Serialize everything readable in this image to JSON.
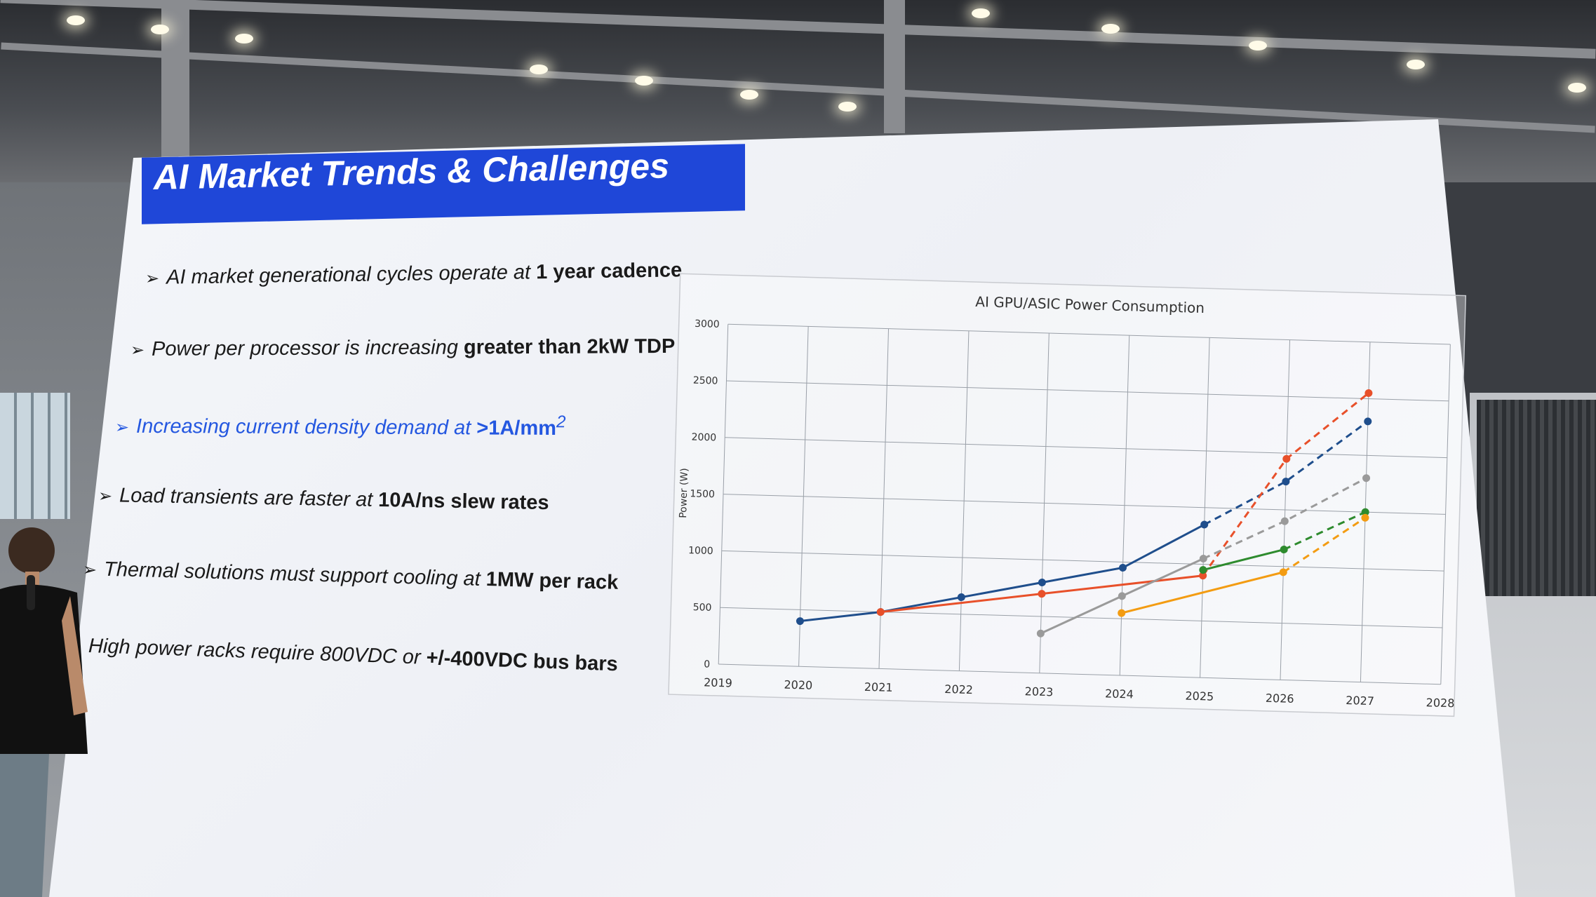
{
  "slide": {
    "title": "AI Market Trends & Challenges",
    "bullets": [
      {
        "text": "AI market generational cycles operate at ",
        "bold": "1 year cadence",
        "sup": ""
      },
      {
        "text": "Power per processor is increasing ",
        "bold": "greater than 2kW TDP",
        "sup": ""
      },
      {
        "text": "Increasing current density demand at ",
        "bold": ">1A/mm",
        "sup": "2"
      },
      {
        "text": "Load transients are faster at ",
        "bold": "10A/ns slew rates",
        "sup": ""
      },
      {
        "text": "Thermal solutions must support cooling at ",
        "bold": "1MW per rack",
        "sup": ""
      },
      {
        "text": "High power racks require 800VDC or ",
        "bold": "+/-400VDC bus bars",
        "sup": ""
      }
    ],
    "arrow_glyph": "➢",
    "colors": {
      "title_bar": "#1f47d8",
      "highlight_text": "#2457e0"
    }
  },
  "chart_data": {
    "type": "line",
    "title": "AI GPU/ASIC Power Consumption",
    "xlabel": "",
    "ylabel": "Power (W)",
    "x_ticks": [
      "2019",
      "2020",
      "2021",
      "2022",
      "2023",
      "2024",
      "2025",
      "2026",
      "2027",
      "2028"
    ],
    "y_ticks": [
      "0",
      "500",
      "1000",
      "1500",
      "2000",
      "2500",
      "3000"
    ],
    "xlim": [
      2019,
      2028
    ],
    "ylim": [
      0,
      3000
    ],
    "grid": true,
    "series": [
      {
        "color": "#1f4e8c",
        "solid": [
          [
            2020,
            400
          ],
          [
            2021,
            500
          ],
          [
            2022,
            650
          ],
          [
            2023,
            800
          ],
          [
            2024,
            950
          ],
          [
            2025,
            1350
          ]
        ],
        "dashed": [
          [
            2025,
            1350
          ],
          [
            2026,
            1750
          ],
          [
            2027,
            2300
          ]
        ]
      },
      {
        "color": "#e8502a",
        "solid": [
          [
            2021,
            500
          ],
          [
            2023,
            700
          ],
          [
            2025,
            900
          ]
        ],
        "dashed": [
          [
            2025,
            900
          ],
          [
            2026,
            1950
          ],
          [
            2027,
            2550
          ]
        ]
      },
      {
        "color": "#9a9a9a",
        "solid": [
          [
            2023,
            350
          ],
          [
            2024,
            700
          ],
          [
            2025,
            1050
          ]
        ],
        "dashed": [
          [
            2025,
            1050
          ],
          [
            2026,
            1400
          ],
          [
            2027,
            1800
          ]
        ]
      },
      {
        "color": "#2e8b2e",
        "solid": [
          [
            2025,
            950
          ],
          [
            2026,
            1150
          ]
        ],
        "dashed": [
          [
            2026,
            1150
          ],
          [
            2027,
            1500
          ]
        ]
      },
      {
        "color": "#f39c12",
        "solid": [
          [
            2024,
            550
          ],
          [
            2026,
            950
          ]
        ],
        "dashed": [
          [
            2026,
            950
          ],
          [
            2027,
            1450
          ]
        ]
      }
    ]
  }
}
